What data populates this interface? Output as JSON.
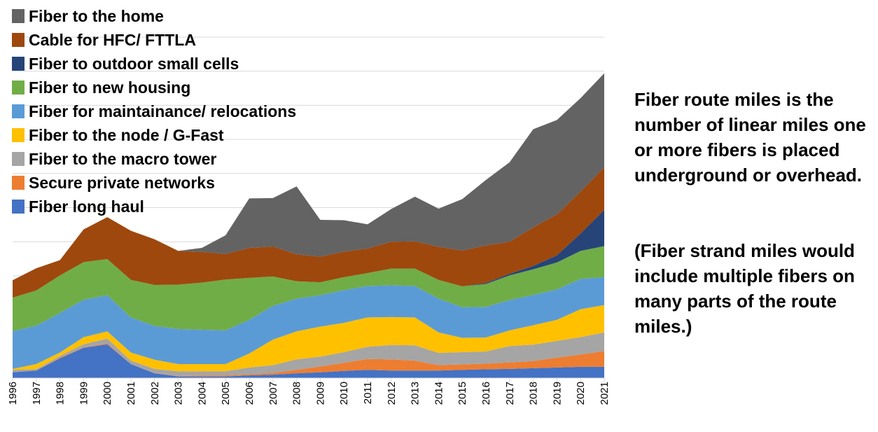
{
  "chart_data": {
    "type": "area",
    "stacked": true,
    "title": "",
    "xlabel": "",
    "ylabel": "",
    "ylim": [
      0,
      10
    ],
    "y_ticks_printed": false,
    "grid": true,
    "legend_position": "top-left",
    "categories": [
      "1996",
      "1997",
      "1998",
      "1999",
      "2000",
      "2001",
      "2002",
      "2003",
      "2004",
      "2005",
      "2006",
      "2007",
      "2008",
      "2009",
      "2010",
      "2011",
      "2012",
      "2013",
      "2014",
      "2015",
      "2016",
      "2017",
      "2018",
      "2019",
      "2020",
      "2021"
    ],
    "series": [
      {
        "name": "Fiber long haul",
        "color": "#4472C4",
        "values": [
          0.17,
          0.22,
          0.58,
          0.89,
          0.99,
          0.41,
          0.14,
          0.05,
          0.05,
          0.05,
          0.08,
          0.1,
          0.14,
          0.17,
          0.21,
          0.24,
          0.22,
          0.22,
          0.22,
          0.24,
          0.26,
          0.27,
          0.29,
          0.31,
          0.33,
          0.33
        ]
      },
      {
        "name": "Secure private networks",
        "color": "#ED7D31",
        "values": [
          0,
          0,
          0.02,
          0.01,
          0.03,
          0,
          0.01,
          0.01,
          0.03,
          0.03,
          0.03,
          0.05,
          0.1,
          0.17,
          0.24,
          0.32,
          0.33,
          0.29,
          0.16,
          0.16,
          0.16,
          0.19,
          0.21,
          0.29,
          0.36,
          0.46
        ]
      },
      {
        "name": "Fiber to the macro tower",
        "color": "#A5A5A5",
        "values": [
          0.07,
          0.04,
          0.05,
          0.09,
          0.14,
          0.1,
          0.12,
          0.14,
          0.12,
          0.12,
          0.2,
          0.23,
          0.31,
          0.29,
          0.31,
          0.36,
          0.42,
          0.45,
          0.36,
          0.36,
          0.36,
          0.48,
          0.48,
          0.49,
          0.51,
          0.55
        ]
      },
      {
        "name": "Fiber to the node / G-Fast",
        "color": "#FFC000",
        "values": [
          0.03,
          0.15,
          0.1,
          0.21,
          0.21,
          0.24,
          0.27,
          0.21,
          0.21,
          0.21,
          0.41,
          0.75,
          0.82,
          0.88,
          0.86,
          0.86,
          0.82,
          0.82,
          0.6,
          0.42,
          0.41,
          0.46,
          0.57,
          0.62,
          0.82,
          0.8
        ]
      },
      {
        "name": "Fiber for maintainance/ relocations",
        "color": "#5B9BD5",
        "values": [
          1.1,
          1.13,
          1.16,
          1.1,
          1.06,
          1.03,
          0.99,
          1.03,
          1.01,
          0.99,
          0.99,
          0.99,
          0.96,
          0.92,
          0.96,
          0.92,
          0.93,
          0.92,
          0.99,
          0.9,
          0.9,
          0.89,
          0.89,
          0.89,
          0.89,
          0.82
        ]
      },
      {
        "name": "Fiber to new housing",
        "color": "#70AD47",
        "values": [
          0.99,
          1.03,
          1.1,
          1.1,
          1.06,
          1.1,
          1.2,
          1.3,
          1.38,
          1.49,
          1.23,
          0.86,
          0.51,
          0.38,
          0.38,
          0.38,
          0.49,
          0.51,
          0.55,
          0.61,
          0.67,
          0.72,
          0.75,
          0.79,
          0.82,
          0.91
        ]
      },
      {
        "name": "Fiber to outdoor small cells",
        "color": "#264478",
        "values": [
          0,
          0,
          0,
          0,
          0,
          0,
          0,
          0,
          0,
          0,
          0,
          0,
          0,
          0,
          0,
          0,
          0,
          0,
          0,
          0,
          0.03,
          0.05,
          0.1,
          0.21,
          0.51,
          1.06
        ]
      },
      {
        "name": "Cable for HFC/ FTTLA",
        "color": "#9E480E",
        "values": [
          0.51,
          0.65,
          0.45,
          0.96,
          1.23,
          1.44,
          1.34,
          0.99,
          0.9,
          0.75,
          0.88,
          0.88,
          0.79,
          0.75,
          0.75,
          0.72,
          0.79,
          0.8,
          0.97,
          1.05,
          1.1,
          0.94,
          1.13,
          1.2,
          1.23,
          1.25
        ]
      },
      {
        "name": "Fiber to the home",
        "color": "#636363",
        "values": [
          0,
          0,
          0,
          0,
          0,
          0,
          0,
          0,
          0.12,
          0.55,
          1.45,
          1.42,
          1.99,
          1.08,
          0.92,
          0.71,
          0.96,
          1.31,
          1.12,
          1.51,
          1.92,
          2.33,
          2.88,
          2.77,
          2.74,
          2.76
        ]
      }
    ],
    "legend_order": [
      "Fiber to the home",
      "Cable for HFC/ FTTLA",
      "Fiber to outdoor small cells",
      "Fiber to new housing",
      "Fiber for maintainance/ relocations",
      "Fiber to the node / G-Fast",
      "Fiber to the macro tower",
      "Secure private networks",
      "Fiber long haul"
    ]
  },
  "notes": {
    "line1": "Fiber route miles is the number of linear miles one or more fibers is placed underground or overhead.",
    "line2": "(Fiber strand miles would include multiple fibers on many parts of the route miles.)"
  }
}
